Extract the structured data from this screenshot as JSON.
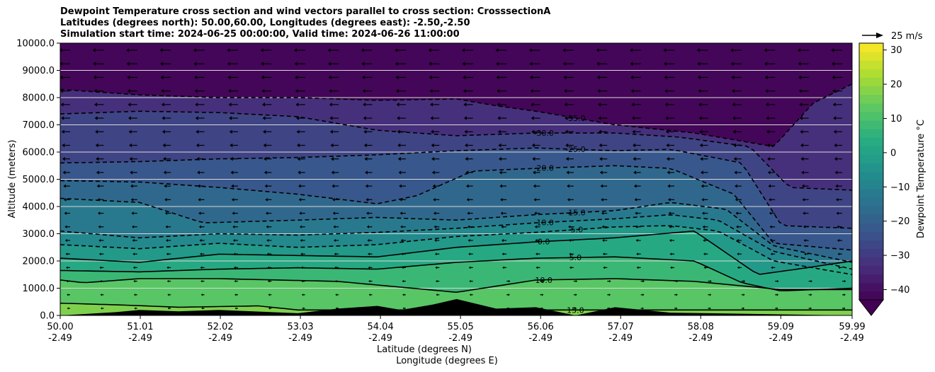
{
  "titles": [
    "Dewpoint Temperature cross section and wind vectors parallel to cross section: CrosssectionA",
    "Latitudes (degrees north): 50.00,60.00, Longitudes (degrees east): -2.50,-2.50",
    "Simulation start time: 2024-06-25 00:00:00, Valid time: 2024-06-26 11:00:00"
  ],
  "chart_data": {
    "type": "contourf",
    "title": "Dewpoint Temperature cross section and wind vectors parallel to cross section: CrosssectionA",
    "xlabel_lat": "Latitude (degrees N)",
    "xlabel_lon": "Longitude (degrees E)",
    "ylabel": "Altitude (meters)",
    "x_ticks_lat": [
      "50.00",
      "51.01",
      "52.02",
      "53.03",
      "54.04",
      "55.05",
      "56.06",
      "57.07",
      "58.08",
      "59.09",
      "59.99"
    ],
    "x_ticks_lon": [
      "-2.49",
      "-2.49",
      "-2.49",
      "-2.49",
      "-2.49",
      "-2.49",
      "-2.49",
      "-2.49",
      "-2.49",
      "-2.49",
      "-2.49"
    ],
    "xlim": [
      50.0,
      59.99
    ],
    "y_ticks": [
      "0.0",
      "1000.0",
      "2000.0",
      "3000.0",
      "4000.0",
      "5000.0",
      "6000.0",
      "7000.0",
      "8000.0",
      "9000.0",
      "10000.0"
    ],
    "ylim": [
      0,
      10000
    ],
    "horizontal_grid": true,
    "colorbar": {
      "label": "Dewpoint Temperature °C",
      "ticks": [
        "30",
        "20",
        "10",
        "0",
        "−10",
        "−20",
        "−30",
        "−40"
      ],
      "tick_values": [
        30,
        20,
        10,
        0,
        -10,
        -20,
        -30,
        -40
      ],
      "range": [
        -43,
        32
      ],
      "extend": "min",
      "colormap": "viridis"
    },
    "quiver_key": {
      "label": "25 m/s",
      "value": 25
    },
    "contours": [
      {
        "level": 15,
        "label": "15.0",
        "style": "solid",
        "x": [
          50.0,
          50.8,
          51.5,
          52.5,
          53.0
        ],
        "y": [
          450,
          380,
          300,
          350,
          200
        ]
      },
      {
        "level": 10,
        "label": "10.0",
        "style": "solid",
        "x": [
          50.0,
          50.3,
          51.0,
          52.0,
          53.5,
          55.0,
          56.0,
          57.0,
          58.0,
          59.09,
          59.99
        ],
        "y": [
          1300,
          1200,
          1350,
          1350,
          1250,
          850,
          1300,
          1350,
          1250,
          950,
          950
        ]
      },
      {
        "level": 5,
        "label": "5.0",
        "style": "solid",
        "x": [
          50.0,
          51.0,
          52.0,
          53.0,
          54.0,
          55.0,
          56.0,
          57.0,
          58.0,
          58.6,
          59.09,
          59.99
        ],
        "y": [
          1650,
          1600,
          1700,
          1750,
          1700,
          1950,
          2100,
          2150,
          2000,
          1200,
          900,
          1000
        ]
      },
      {
        "level": 0,
        "label": "0.0",
        "style": "solid",
        "x": [
          50.0,
          51.0,
          52.0,
          53.0,
          54.0,
          55.0,
          56.0,
          57.0,
          58.0,
          58.8,
          59.3,
          59.99
        ],
        "y": [
          2100,
          1950,
          2250,
          2200,
          2150,
          2500,
          2700,
          2850,
          3100,
          1500,
          1700,
          2000
        ]
      },
      {
        "level": -5,
        "label": "-5.0",
        "style": "dashed",
        "x": [
          50.0,
          51.0,
          52.0,
          53.0,
          54.0,
          55.0,
          56.0,
          57.0,
          57.7,
          58.3,
          59.0,
          59.99
        ],
        "y": [
          2600,
          2450,
          2650,
          2500,
          2600,
          2900,
          3050,
          3250,
          3300,
          3100,
          2000,
          1500
        ]
      },
      {
        "level": -10,
        "label": "-10.0",
        "style": "dashed",
        "x": [
          50.0,
          51.0,
          52.0,
          53.0,
          54.0,
          55.0,
          56.0,
          57.0,
          57.7,
          58.3,
          59.0,
          59.99
        ],
        "y": [
          3100,
          2850,
          3000,
          2950,
          3050,
          3200,
          3400,
          3550,
          3700,
          3500,
          2350,
          1700
        ]
      },
      {
        "level": -15,
        "label": "-15.0",
        "style": "dashed",
        "x": [
          50.0,
          51.0,
          51.8,
          53.0,
          54.0,
          55.0,
          56.0,
          57.0,
          57.7,
          58.4,
          59.0,
          59.99
        ],
        "y": [
          4300,
          4150,
          3400,
          3500,
          3600,
          3500,
          3700,
          3850,
          4150,
          3900,
          2550,
          1950
        ]
      },
      {
        "level": -20,
        "label": "-20.0",
        "style": "dashed",
        "x": [
          50.0,
          51.0,
          52.0,
          53.0,
          54.0,
          54.5,
          55.2,
          56.0,
          57.0,
          57.7,
          58.5,
          59.0,
          59.99
        ],
        "y": [
          4950,
          4900,
          4700,
          4450,
          4100,
          4400,
          5300,
          5400,
          5500,
          5400,
          4450,
          2650,
          2400
        ]
      },
      {
        "level": -25,
        "label": "-25.0",
        "style": "dashed",
        "x": [
          50.0,
          51.0,
          52.0,
          53.0,
          54.0,
          55.0,
          56.0,
          57.0,
          57.7,
          58.6,
          59.1,
          59.99
        ],
        "y": [
          5600,
          5650,
          5750,
          5800,
          5900,
          6050,
          6150,
          6050,
          6100,
          5600,
          3300,
          3200
        ]
      },
      {
        "level": -30,
        "label": "-30.0",
        "style": "dashed",
        "x": [
          50.0,
          51.0,
          52.0,
          53.0,
          54.0,
          55.0,
          56.0,
          57.0,
          57.8,
          58.7,
          59.2,
          59.99
        ],
        "y": [
          7400,
          7500,
          7450,
          7300,
          6800,
          6600,
          6700,
          6700,
          6550,
          6200,
          4700,
          4600
        ]
      },
      {
        "level": -35,
        "label": "-35.0",
        "style": "dashed",
        "x": [
          50.0,
          51.0,
          52.0,
          53.0,
          54.0,
          55.0,
          55.5,
          56.0,
          57.0,
          58.0,
          59.0,
          59.5,
          59.99
        ],
        "y": [
          8300,
          8100,
          8000,
          8000,
          7900,
          7950,
          7700,
          7500,
          7000,
          6700,
          6200,
          7800,
          8500
        ]
      }
    ],
    "terrain": {
      "x": [
        50.0,
        50.7,
        51.0,
        51.5,
        52.0,
        53.0,
        53.5,
        54.0,
        54.3,
        54.7,
        55.0,
        55.5,
        56.0,
        56.5,
        57.0,
        57.7,
        59.99
      ],
      "y": [
        0,
        120,
        200,
        150,
        200,
        80,
        250,
        350,
        200,
        400,
        600,
        250,
        300,
        0,
        300,
        100,
        0
      ]
    }
  }
}
